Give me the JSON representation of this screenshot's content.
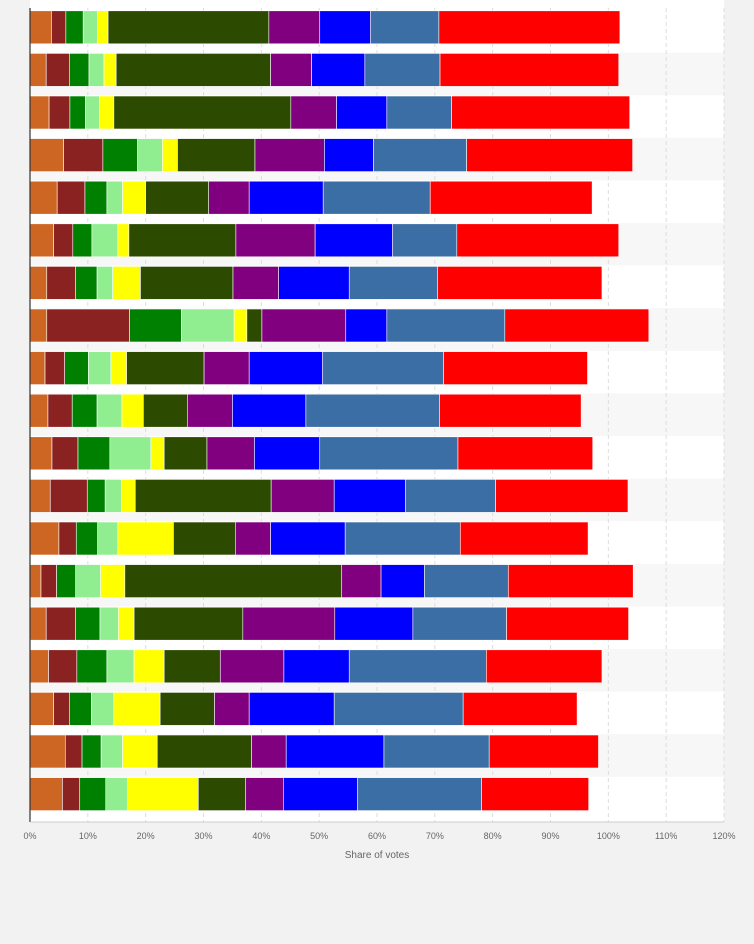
{
  "chart_data": {
    "type": "bar",
    "orientation": "horizontal",
    "stacked": true,
    "title": "",
    "xlabel": "Share of votes",
    "ylabel": "",
    "xlim": [
      0,
      120
    ],
    "x_ticks": [
      "0%",
      "10%",
      "20%",
      "30%",
      "40%",
      "50%",
      "60%",
      "70%",
      "80%",
      "90%",
      "100%",
      "110%",
      "120%"
    ],
    "grid": true,
    "legend": "none",
    "segment_colors": [
      "#cc6622",
      "#8b2222",
      "#008000",
      "#90ee90",
      "#ffff00",
      "#2d4b00",
      "#800080",
      "#0000ff",
      "#3a6ea5",
      "#ff0000"
    ],
    "rows": [
      [
        3.7,
        2.5,
        3.0,
        2.5,
        1.8,
        27.8,
        8.8,
        8.8,
        11.8,
        31.3
      ],
      [
        2.8,
        4.0,
        3.4,
        2.6,
        2.1,
        26.7,
        7.1,
        9.2,
        13.0,
        30.9
      ],
      [
        3.3,
        3.6,
        2.7,
        2.4,
        2.5,
        30.6,
        7.9,
        8.7,
        11.2,
        30.8
      ],
      [
        5.8,
        6.8,
        6.0,
        4.3,
        2.6,
        13.4,
        12.0,
        8.5,
        16.1,
        28.7
      ],
      [
        4.7,
        4.8,
        3.8,
        2.7,
        4.0,
        10.9,
        7.0,
        12.8,
        18.5,
        28.0
      ],
      [
        4.1,
        3.3,
        3.3,
        4.5,
        1.9,
        18.5,
        13.7,
        13.4,
        11.1,
        28.0
      ],
      [
        2.9,
        5.0,
        3.7,
        2.7,
        4.8,
        16.0,
        7.9,
        12.2,
        15.3,
        28.4
      ],
      [
        2.9,
        14.3,
        9.0,
        9.1,
        2.2,
        2.6,
        14.5,
        7.1,
        20.4,
        24.9
      ],
      [
        2.6,
        3.4,
        4.1,
        3.9,
        2.7,
        13.4,
        7.8,
        12.7,
        20.9,
        24.9
      ],
      [
        3.1,
        4.2,
        4.3,
        4.3,
        3.7,
        7.6,
        7.8,
        12.7,
        23.1,
        24.5
      ],
      [
        3.8,
        4.5,
        5.5,
        7.1,
        2.3,
        7.4,
        8.2,
        11.3,
        23.9,
        23.3
      ],
      [
        3.5,
        6.4,
        3.1,
        2.8,
        2.4,
        23.5,
        10.9,
        12.3,
        15.6,
        22.9
      ],
      [
        5.0,
        3.0,
        3.7,
        3.5,
        9.6,
        10.7,
        6.1,
        12.9,
        19.9,
        22.1
      ],
      [
        1.9,
        2.7,
        3.3,
        4.3,
        4.2,
        37.5,
        6.8,
        7.5,
        14.5,
        21.6
      ],
      [
        2.8,
        5.1,
        4.2,
        3.2,
        2.7,
        18.8,
        15.9,
        13.5,
        16.2,
        21.1
      ],
      [
        3.2,
        4.9,
        5.2,
        4.7,
        5.2,
        9.7,
        11.0,
        11.3,
        23.7,
        20.0
      ],
      [
        4.1,
        2.7,
        3.8,
        3.9,
        8.0,
        9.4,
        6.0,
        14.7,
        22.3,
        19.7
      ],
      [
        6.1,
        2.9,
        3.3,
        3.7,
        6.0,
        16.3,
        6.0,
        16.9,
        18.2,
        18.9
      ],
      [
        5.6,
        3.0,
        4.5,
        3.8,
        12.2,
        8.2,
        6.5,
        12.8,
        21.5,
        18.5
      ]
    ]
  },
  "footer": {
    "copyright": ""
  }
}
